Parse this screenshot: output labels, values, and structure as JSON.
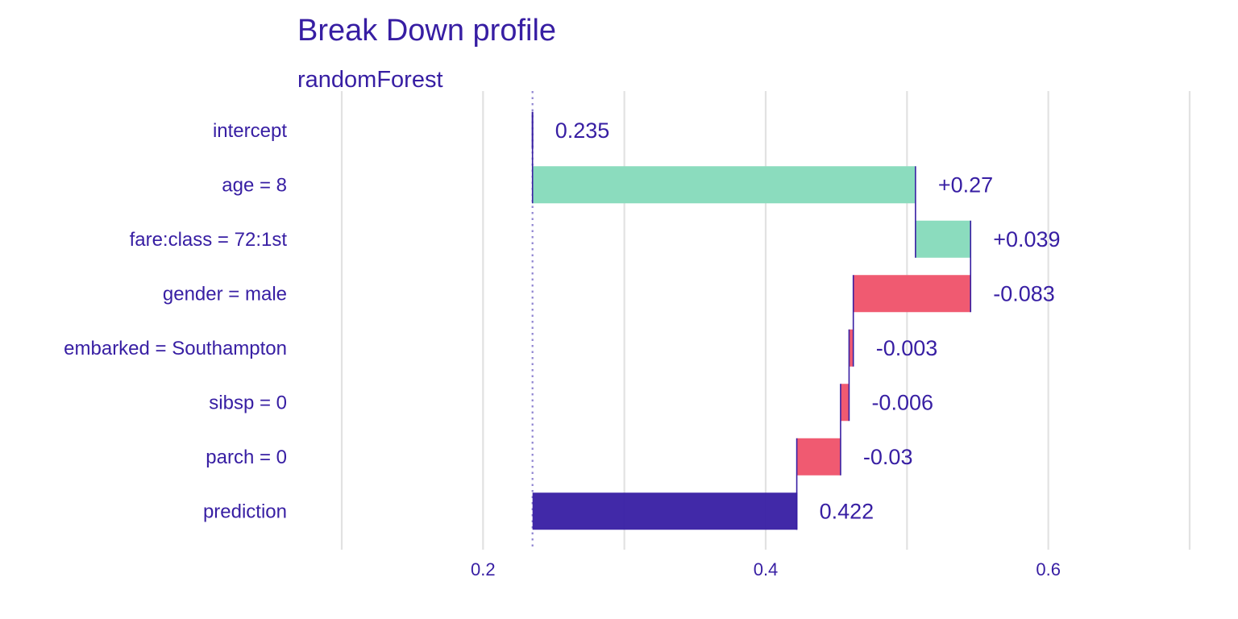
{
  "chart_data": {
    "type": "bar",
    "title": "Break Down profile",
    "subtitle": "randomForest",
    "xlabel": "",
    "ylabel": "",
    "xlim": [
      0.1,
      0.7
    ],
    "x_ticks": [
      {
        "value": 0.2,
        "label": "0.2"
      },
      {
        "value": 0.4,
        "label": "0.4"
      },
      {
        "value": 0.6,
        "label": "0.6"
      }
    ],
    "grid_values": [
      0.1,
      0.2,
      0.3,
      0.4,
      0.5,
      0.6,
      0.7
    ],
    "baseline": 0.235,
    "colors": {
      "text": "#371ea3",
      "positive": "#8bdcbe",
      "negative": "#f05a71",
      "prediction": "#371ea3",
      "connector": "#371ea3",
      "baseline": "#8f84d1",
      "grid": "#e2e2e2"
    },
    "items": [
      {
        "variable": "intercept",
        "start": 0.235,
        "end": 0.235,
        "label": "0.235",
        "kind": "intercept"
      },
      {
        "variable": "age = 8",
        "start": 0.235,
        "end": 0.506,
        "label": "+0.27",
        "kind": "positive"
      },
      {
        "variable": "fare:class = 72:1st",
        "start": 0.506,
        "end": 0.545,
        "label": "+0.039",
        "kind": "positive"
      },
      {
        "variable": "gender = male",
        "start": 0.545,
        "end": 0.462,
        "label": "-0.083",
        "kind": "negative"
      },
      {
        "variable": "embarked = Southampton",
        "start": 0.462,
        "end": 0.459,
        "label": "-0.003",
        "kind": "negative"
      },
      {
        "variable": "sibsp = 0",
        "start": 0.459,
        "end": 0.453,
        "label": "-0.006",
        "kind": "negative"
      },
      {
        "variable": "parch = 0",
        "start": 0.453,
        "end": 0.422,
        "label": "-0.03",
        "kind": "negative"
      },
      {
        "variable": "prediction",
        "start": 0.235,
        "end": 0.422,
        "label": "0.422",
        "kind": "prediction"
      }
    ]
  }
}
